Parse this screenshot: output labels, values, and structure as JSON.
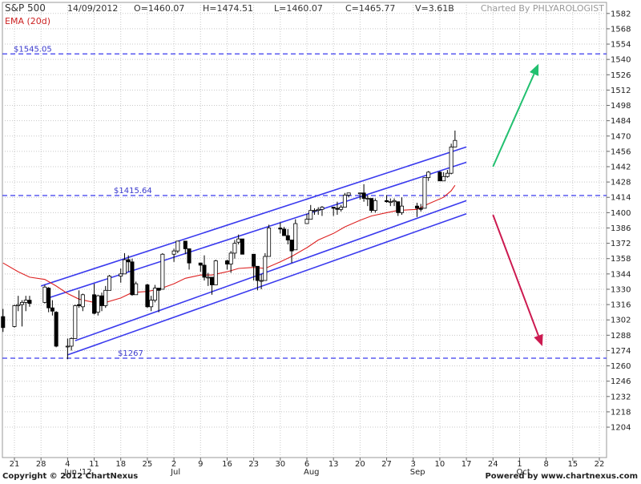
{
  "header": {
    "symbol": "S&P 500",
    "date": "14/09/2012",
    "open": "O=1460.07",
    "high": "H=1474.51",
    "low": "L=1460.07",
    "close": "C=1465.77",
    "volume": "V=3.61B",
    "charted_by": "Charted By PHLYAROLOGIST"
  },
  "indicator_label": "EMA (20d)",
  "footer": {
    "copyright": "Copyright © 2012 ChartNexus",
    "powered": "Powered by www.chartnexus.com"
  },
  "colors": {
    "bull_fill": "#ffffff",
    "bear_fill": "#000000",
    "ema": "#dd2222",
    "channel": "#3a3aee",
    "levels": "#3a3aee",
    "arrow_up": "#22c070",
    "arrow_down": "#cc1a50",
    "grid": "#c8c8c8"
  },
  "chart_data": {
    "type": "candlestick",
    "x_start": "2012-05-21",
    "x_end": "2012-10-22",
    "ylim": [
      1190,
      1590
    ],
    "yticks": [
      1204,
      1218,
      1232,
      1246,
      1260,
      1274,
      1288,
      1302,
      1316,
      1330,
      1344,
      1358,
      1372,
      1386,
      1400,
      1414,
      1428,
      1442,
      1456,
      1470,
      1484,
      1498,
      1512,
      1526,
      1540,
      1554,
      1568,
      1582
    ],
    "xticks": [
      {
        "date": "2012-05-21",
        "day": "21",
        "month": ""
      },
      {
        "date": "2012-05-28",
        "day": "28",
        "month": ""
      },
      {
        "date": "2012-06-04",
        "day": "4",
        "month": "Jun '12"
      },
      {
        "date": "2012-06-11",
        "day": "11",
        "month": ""
      },
      {
        "date": "2012-06-18",
        "day": "18",
        "month": ""
      },
      {
        "date": "2012-06-25",
        "day": "25",
        "month": ""
      },
      {
        "date": "2012-07-02",
        "day": "2",
        "month": "Jul"
      },
      {
        "date": "2012-07-09",
        "day": "9",
        "month": ""
      },
      {
        "date": "2012-07-16",
        "day": "16",
        "month": ""
      },
      {
        "date": "2012-07-23",
        "day": "23",
        "month": ""
      },
      {
        "date": "2012-07-30",
        "day": "30",
        "month": ""
      },
      {
        "date": "2012-08-06",
        "day": "6",
        "month": "Aug"
      },
      {
        "date": "2012-08-13",
        "day": "13",
        "month": ""
      },
      {
        "date": "2012-08-20",
        "day": "20",
        "month": ""
      },
      {
        "date": "2012-08-27",
        "day": "27",
        "month": ""
      },
      {
        "date": "2012-09-03",
        "day": "3",
        "month": "Sep"
      },
      {
        "date": "2012-09-10",
        "day": "10",
        "month": ""
      },
      {
        "date": "2012-09-17",
        "day": "17",
        "month": ""
      },
      {
        "date": "2012-09-24",
        "day": "24",
        "month": ""
      },
      {
        "date": "2012-10-01",
        "day": "1",
        "month": "Oct"
      },
      {
        "date": "2012-10-08",
        "day": "8",
        "month": ""
      },
      {
        "date": "2012-10-15",
        "day": "15",
        "month": ""
      },
      {
        "date": "2012-10-22",
        "day": "22",
        "month": ""
      }
    ],
    "candles": [
      {
        "d": "2012-05-18",
        "o": 1305,
        "h": 1312,
        "l": 1291,
        "c": 1295
      },
      {
        "d": "2012-05-21",
        "o": 1296,
        "h": 1316,
        "l": 1295,
        "c": 1315
      },
      {
        "d": "2012-05-22",
        "o": 1315,
        "h": 1324,
        "l": 1310,
        "c": 1316
      },
      {
        "d": "2012-05-23",
        "o": 1316,
        "h": 1320,
        "l": 1296,
        "c": 1318
      },
      {
        "d": "2012-05-24",
        "o": 1318,
        "h": 1324,
        "l": 1310,
        "c": 1320
      },
      {
        "d": "2012-05-25",
        "o": 1320,
        "h": 1324,
        "l": 1314,
        "c": 1317
      },
      {
        "d": "2012-05-29",
        "o": 1318,
        "h": 1334,
        "l": 1317,
        "c": 1332
      },
      {
        "d": "2012-05-30",
        "o": 1331,
        "h": 1332,
        "l": 1309,
        "c": 1313
      },
      {
        "d": "2012-05-31",
        "o": 1313,
        "h": 1320,
        "l": 1306,
        "c": 1310
      },
      {
        "d": "2012-06-01",
        "o": 1309,
        "h": 1310,
        "l": 1277,
        "c": 1278
      },
      {
        "d": "2012-06-04",
        "o": 1278,
        "h": 1285,
        "l": 1266,
        "c": 1278
      },
      {
        "d": "2012-06-05",
        "o": 1278,
        "h": 1286,
        "l": 1274,
        "c": 1285
      },
      {
        "d": "2012-06-06",
        "o": 1285,
        "h": 1316,
        "l": 1285,
        "c": 1315
      },
      {
        "d": "2012-06-07",
        "o": 1316,
        "h": 1329,
        "l": 1313,
        "c": 1315
      },
      {
        "d": "2012-06-08",
        "o": 1314,
        "h": 1326,
        "l": 1310,
        "c": 1325
      },
      {
        "d": "2012-06-11",
        "o": 1325,
        "h": 1335,
        "l": 1307,
        "c": 1308
      },
      {
        "d": "2012-06-12",
        "o": 1309,
        "h": 1325,
        "l": 1306,
        "c": 1324
      },
      {
        "d": "2012-06-13",
        "o": 1324,
        "h": 1327,
        "l": 1310,
        "c": 1315
      },
      {
        "d": "2012-06-14",
        "o": 1315,
        "h": 1333,
        "l": 1313,
        "c": 1329
      },
      {
        "d": "2012-06-15",
        "o": 1329,
        "h": 1343,
        "l": 1329,
        "c": 1342
      },
      {
        "d": "2012-06-18",
        "o": 1342,
        "h": 1349,
        "l": 1336,
        "c": 1344
      },
      {
        "d": "2012-06-19",
        "o": 1344,
        "h": 1363,
        "l": 1344,
        "c": 1357
      },
      {
        "d": "2012-06-20",
        "o": 1357,
        "h": 1361,
        "l": 1346,
        "c": 1355
      },
      {
        "d": "2012-06-21",
        "o": 1355,
        "h": 1358,
        "l": 1324,
        "c": 1325
      },
      {
        "d": "2012-06-22",
        "o": 1325,
        "h": 1337,
        "l": 1325,
        "c": 1335
      },
      {
        "d": "2012-06-25",
        "o": 1334,
        "h": 1335,
        "l": 1313,
        "c": 1314
      },
      {
        "d": "2012-06-26",
        "o": 1314,
        "h": 1324,
        "l": 1310,
        "c": 1320
      },
      {
        "d": "2012-06-27",
        "o": 1320,
        "h": 1334,
        "l": 1318,
        "c": 1331
      },
      {
        "d": "2012-06-28",
        "o": 1331,
        "h": 1331,
        "l": 1309,
        "c": 1329
      },
      {
        "d": "2012-06-29",
        "o": 1330,
        "h": 1363,
        "l": 1330,
        "c": 1362
      },
      {
        "d": "2012-07-02",
        "o": 1362,
        "h": 1367,
        "l": 1355,
        "c": 1365
      },
      {
        "d": "2012-07-03",
        "o": 1365,
        "h": 1374,
        "l": 1363,
        "c": 1374
      },
      {
        "d": "2012-07-05",
        "o": 1374,
        "h": 1373,
        "l": 1362,
        "c": 1367
      },
      {
        "d": "2012-07-06",
        "o": 1367,
        "h": 1367,
        "l": 1348,
        "c": 1354
      },
      {
        "d": "2012-07-09",
        "o": 1354,
        "h": 1354,
        "l": 1346,
        "c": 1352
      },
      {
        "d": "2012-07-10",
        "o": 1352,
        "h": 1361,
        "l": 1338,
        "c": 1341
      },
      {
        "d": "2012-07-11",
        "o": 1341,
        "h": 1345,
        "l": 1333,
        "c": 1341
      },
      {
        "d": "2012-07-12",
        "o": 1341,
        "h": 1341,
        "l": 1325,
        "c": 1334
      },
      {
        "d": "2012-07-13",
        "o": 1334,
        "h": 1357,
        "l": 1334,
        "c": 1356
      },
      {
        "d": "2012-07-16",
        "o": 1356,
        "h": 1357,
        "l": 1348,
        "c": 1353
      },
      {
        "d": "2012-07-17",
        "o": 1353,
        "h": 1365,
        "l": 1345,
        "c": 1363
      },
      {
        "d": "2012-07-18",
        "o": 1363,
        "h": 1375,
        "l": 1358,
        "c": 1372
      },
      {
        "d": "2012-07-19",
        "o": 1373,
        "h": 1380,
        "l": 1371,
        "c": 1376
      },
      {
        "d": "2012-07-20",
        "o": 1376,
        "h": 1376,
        "l": 1362,
        "c": 1362
      },
      {
        "d": "2012-07-23",
        "o": 1362,
        "h": 1362,
        "l": 1338,
        "c": 1351
      },
      {
        "d": "2012-07-24",
        "o": 1351,
        "h": 1351,
        "l": 1329,
        "c": 1338
      },
      {
        "d": "2012-07-25",
        "o": 1338,
        "h": 1344,
        "l": 1330,
        "c": 1338
      },
      {
        "d": "2012-07-26",
        "o": 1338,
        "h": 1363,
        "l": 1338,
        "c": 1360
      },
      {
        "d": "2012-07-27",
        "o": 1360,
        "h": 1389,
        "l": 1360,
        "c": 1386
      },
      {
        "d": "2012-07-30",
        "o": 1386,
        "h": 1391,
        "l": 1381,
        "c": 1385
      },
      {
        "d": "2012-07-31",
        "o": 1385,
        "h": 1387,
        "l": 1379,
        "c": 1379
      },
      {
        "d": "2012-08-01",
        "o": 1379,
        "h": 1385,
        "l": 1371,
        "c": 1375
      },
      {
        "d": "2012-08-02",
        "o": 1375,
        "h": 1375,
        "l": 1354,
        "c": 1365
      },
      {
        "d": "2012-08-03",
        "o": 1366,
        "h": 1394,
        "l": 1366,
        "c": 1390
      },
      {
        "d": "2012-08-06",
        "o": 1390,
        "h": 1399,
        "l": 1390,
        "c": 1394
      },
      {
        "d": "2012-08-07",
        "o": 1394,
        "h": 1407,
        "l": 1394,
        "c": 1402
      },
      {
        "d": "2012-08-08",
        "o": 1402,
        "h": 1404,
        "l": 1398,
        "c": 1402
      },
      {
        "d": "2012-08-09",
        "o": 1402,
        "h": 1405,
        "l": 1398,
        "c": 1403
      },
      {
        "d": "2012-08-10",
        "o": 1403,
        "h": 1406,
        "l": 1397,
        "c": 1405
      },
      {
        "d": "2012-08-13",
        "o": 1405,
        "h": 1405,
        "l": 1397,
        "c": 1404
      },
      {
        "d": "2012-08-14",
        "o": 1404,
        "h": 1410,
        "l": 1398,
        "c": 1403
      },
      {
        "d": "2012-08-15",
        "o": 1403,
        "h": 1407,
        "l": 1401,
        "c": 1405
      },
      {
        "d": "2012-08-16",
        "o": 1405,
        "h": 1418,
        "l": 1405,
        "c": 1416
      },
      {
        "d": "2012-08-17",
        "o": 1416,
        "h": 1418,
        "l": 1414,
        "c": 1418
      },
      {
        "d": "2012-08-20",
        "o": 1418,
        "h": 1418,
        "l": 1412,
        "c": 1418
      },
      {
        "d": "2012-08-21",
        "o": 1418,
        "h": 1426,
        "l": 1410,
        "c": 1413
      },
      {
        "d": "2012-08-22",
        "o": 1413,
        "h": 1416,
        "l": 1406,
        "c": 1413
      },
      {
        "d": "2012-08-23",
        "o": 1413,
        "h": 1413,
        "l": 1400,
        "c": 1402
      },
      {
        "d": "2012-08-24",
        "o": 1402,
        "h": 1413,
        "l": 1400,
        "c": 1411
      },
      {
        "d": "2012-08-27",
        "o": 1411,
        "h": 1416,
        "l": 1409,
        "c": 1410
      },
      {
        "d": "2012-08-28",
        "o": 1410,
        "h": 1413,
        "l": 1406,
        "c": 1410
      },
      {
        "d": "2012-08-29",
        "o": 1410,
        "h": 1413,
        "l": 1406,
        "c": 1411
      },
      {
        "d": "2012-08-30",
        "o": 1410,
        "h": 1410,
        "l": 1397,
        "c": 1400
      },
      {
        "d": "2012-08-31",
        "o": 1400,
        "h": 1414,
        "l": 1398,
        "c": 1406
      },
      {
        "d": "2012-09-04",
        "o": 1406,
        "h": 1409,
        "l": 1396,
        "c": 1404
      },
      {
        "d": "2012-09-05",
        "o": 1404,
        "h": 1408,
        "l": 1401,
        "c": 1403
      },
      {
        "d": "2012-09-06",
        "o": 1404,
        "h": 1432,
        "l": 1404,
        "c": 1432
      },
      {
        "d": "2012-09-07",
        "o": 1432,
        "h": 1438,
        "l": 1429,
        "c": 1437
      },
      {
        "d": "2012-09-10",
        "o": 1437,
        "h": 1438,
        "l": 1429,
        "c": 1429
      },
      {
        "d": "2012-09-11",
        "o": 1429,
        "h": 1437,
        "l": 1429,
        "c": 1433
      },
      {
        "d": "2012-09-12",
        "o": 1433,
        "h": 1439,
        "l": 1432,
        "c": 1436
      },
      {
        "d": "2012-09-13",
        "o": 1436,
        "h": 1463,
        "l": 1435,
        "c": 1460
      },
      {
        "d": "2012-09-14",
        "o": 1460,
        "h": 1475,
        "l": 1460,
        "c": 1466
      }
    ],
    "ema": [
      {
        "d": "2012-05-18",
        "v": 1354
      },
      {
        "d": "2012-05-22",
        "v": 1346
      },
      {
        "d": "2012-05-25",
        "v": 1341
      },
      {
        "d": "2012-05-29",
        "v": 1339
      },
      {
        "d": "2012-06-01",
        "v": 1333
      },
      {
        "d": "2012-06-04",
        "v": 1326
      },
      {
        "d": "2012-06-07",
        "v": 1321
      },
      {
        "d": "2012-06-11",
        "v": 1318
      },
      {
        "d": "2012-06-14",
        "v": 1318
      },
      {
        "d": "2012-06-18",
        "v": 1322
      },
      {
        "d": "2012-06-21",
        "v": 1327
      },
      {
        "d": "2012-06-25",
        "v": 1328
      },
      {
        "d": "2012-06-28",
        "v": 1330
      },
      {
        "d": "2012-07-02",
        "v": 1335
      },
      {
        "d": "2012-07-05",
        "v": 1340
      },
      {
        "d": "2012-07-09",
        "v": 1343
      },
      {
        "d": "2012-07-12",
        "v": 1343
      },
      {
        "d": "2012-07-16",
        "v": 1346
      },
      {
        "d": "2012-07-19",
        "v": 1349
      },
      {
        "d": "2012-07-23",
        "v": 1350
      },
      {
        "d": "2012-07-26",
        "v": 1349
      },
      {
        "d": "2012-07-30",
        "v": 1355
      },
      {
        "d": "2012-08-02",
        "v": 1360
      },
      {
        "d": "2012-08-06",
        "v": 1368
      },
      {
        "d": "2012-08-09",
        "v": 1375
      },
      {
        "d": "2012-08-13",
        "v": 1381
      },
      {
        "d": "2012-08-16",
        "v": 1387
      },
      {
        "d": "2012-08-20",
        "v": 1393
      },
      {
        "d": "2012-08-23",
        "v": 1397
      },
      {
        "d": "2012-08-27",
        "v": 1400
      },
      {
        "d": "2012-08-30",
        "v": 1402
      },
      {
        "d": "2012-09-04",
        "v": 1403
      },
      {
        "d": "2012-09-07",
        "v": 1408
      },
      {
        "d": "2012-09-11",
        "v": 1414
      },
      {
        "d": "2012-09-13",
        "v": 1420
      },
      {
        "d": "2012-09-14",
        "v": 1425
      }
    ],
    "channel_lines": [
      {
        "name": "channel-upper",
        "from": {
          "d": "2012-05-28",
          "v": 1333
        },
        "to": {
          "d": "2012-09-17",
          "v": 1460
        }
      },
      {
        "name": "channel-upper-inner",
        "from": {
          "d": "2012-05-29",
          "v": 1321
        },
        "to": {
          "d": "2012-09-17",
          "v": 1446
        }
      },
      {
        "name": "channel-lower-inner",
        "from": {
          "d": "2012-06-06",
          "v": 1283
        },
        "to": {
          "d": "2012-09-17",
          "v": 1411
        }
      },
      {
        "name": "channel-lower",
        "from": {
          "d": "2012-06-04",
          "v": 1270
        },
        "to": {
          "d": "2012-09-17",
          "v": 1399
        }
      }
    ],
    "levels": [
      {
        "name": "level-1545",
        "value": 1545.05,
        "label": "$1545.05"
      },
      {
        "name": "level-1415",
        "value": 1415.64,
        "label": "$1415.64"
      },
      {
        "name": "level-1267",
        "value": 1267,
        "label": "$1267"
      }
    ],
    "arrows": [
      {
        "name": "arrow-up",
        "from": {
          "d": "2012-09-24",
          "v": 1442
        },
        "to": {
          "d": "2012-10-06",
          "v": 1536
        },
        "color": "#22c070"
      },
      {
        "name": "arrow-down",
        "from": {
          "d": "2012-09-24",
          "v": 1398
        },
        "to": {
          "d": "2012-10-07",
          "v": 1278
        },
        "color": "#cc1a50"
      }
    ]
  }
}
